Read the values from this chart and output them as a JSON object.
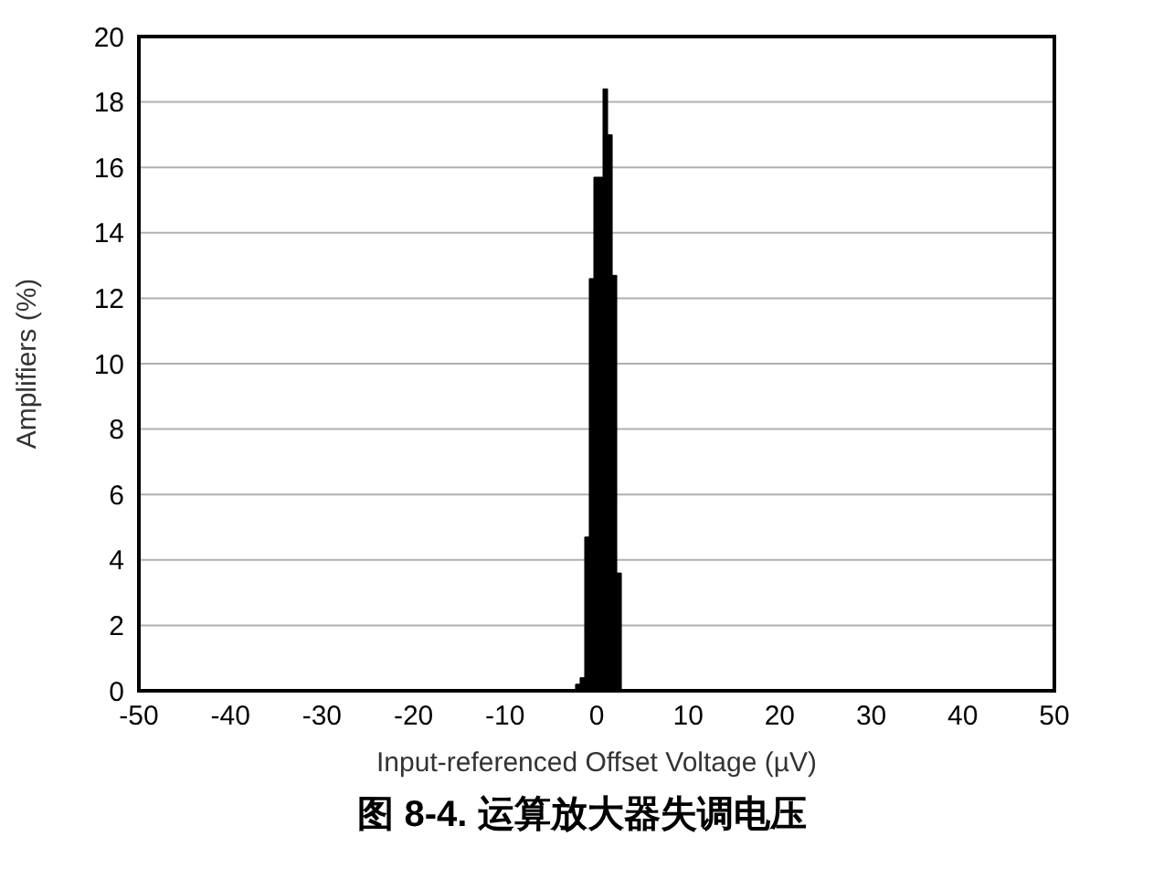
{
  "chart_data": {
    "type": "histogram",
    "title": "图 8-4. 运算放大器失调电压",
    "xlabel": "Input-referenced Offset Voltage (µV)",
    "ylabel": "Amplifiers (%)",
    "bins": [
      -2.3,
      -1.8,
      -1.3,
      -0.8,
      -0.3,
      0.2,
      0.7,
      1.2,
      1.7,
      2.2,
      2.7
    ],
    "values": [
      0.2,
      0.4,
      4.7,
      12.6,
      15.7,
      15.7,
      18.4,
      17,
      12.7,
      3.6
    ],
    "color": "#000000",
    "xlim": [
      -50,
      50
    ],
    "xticks": [
      -50,
      -40,
      -30,
      -20,
      -10,
      0,
      10,
      20,
      30,
      40,
      50
    ],
    "ylim": [
      0,
      20
    ],
    "yticks": [
      0,
      2,
      4,
      6,
      8,
      10,
      12,
      14,
      16,
      18,
      20
    ],
    "grid": "y"
  }
}
